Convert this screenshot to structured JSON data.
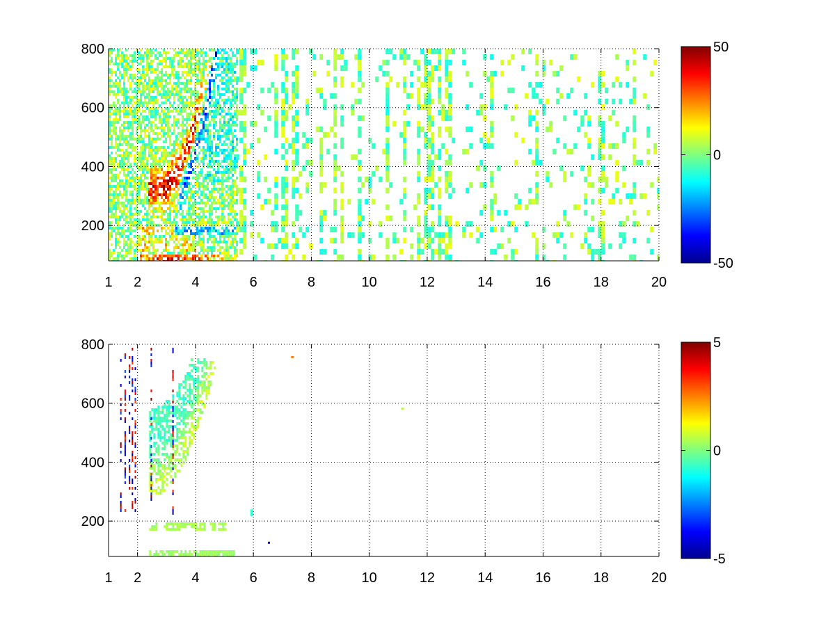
{
  "chart_data": [
    {
      "type": "heatmap",
      "title": "",
      "xlabel": "",
      "ylabel": "",
      "x_ticks": [
        "1",
        "2",
        "4",
        "6",
        "8",
        "10",
        "12",
        "14",
        "16",
        "18",
        "20"
      ],
      "x_tick_values": [
        1,
        2,
        4,
        6,
        8,
        10,
        12,
        14,
        16,
        18,
        20
      ],
      "y_ticks": [
        "200",
        "400",
        "600",
        "800"
      ],
      "y_tick_values": [
        200,
        400,
        600,
        800
      ],
      "xlim": [
        1,
        20
      ],
      "ylim": [
        80,
        800
      ],
      "grid": true,
      "colormap": "jet",
      "colorbar": {
        "min": -50,
        "max": 50,
        "ticks": [
          "50",
          "0",
          "-50"
        ],
        "tick_values": [
          50,
          0,
          -50
        ]
      },
      "features": [
        {
          "description_kind": "arc",
          "x_range": [
            2.5,
            4.8
          ],
          "y_range": [
            300,
            800
          ],
          "peak_value": 40
        },
        {
          "description_kind": "band",
          "y": 90,
          "x_range": [
            1.8,
            5.5
          ],
          "peak_value": 45
        },
        {
          "description_kind": "band",
          "y": 180,
          "x_range": [
            1.8,
            5.5
          ],
          "peak_value": 15
        }
      ]
    },
    {
      "type": "heatmap",
      "title": "",
      "xlabel": "",
      "ylabel": "",
      "x_ticks": [
        "1",
        "2",
        "4",
        "6",
        "8",
        "10",
        "12",
        "14",
        "16",
        "18",
        "20"
      ],
      "x_tick_values": [
        1,
        2,
        4,
        6,
        8,
        10,
        12,
        14,
        16,
        18,
        20
      ],
      "y_ticks": [
        "200",
        "400",
        "600",
        "800"
      ],
      "y_tick_values": [
        200,
        400,
        600,
        800
      ],
      "xlim": [
        1,
        20
      ],
      "ylim": [
        80,
        800
      ],
      "grid": true,
      "colormap": "jet",
      "colorbar": {
        "min": -5,
        "max": 5,
        "ticks": [
          "5",
          "0",
          "-5"
        ],
        "tick_values": [
          5,
          0,
          -5
        ]
      },
      "features": [
        {
          "description_kind": "arc",
          "x_range": [
            2.5,
            5.2
          ],
          "y_range": [
            300,
            720
          ],
          "peak_value": 1
        },
        {
          "description_kind": "band",
          "y": 90,
          "x_range": [
            2.2,
            5.5
          ],
          "peak_value": 0.5
        },
        {
          "description_kind": "band",
          "y": 190,
          "x_range": [
            2.2,
            5.0
          ],
          "peak_value": 0.5
        }
      ]
    }
  ]
}
